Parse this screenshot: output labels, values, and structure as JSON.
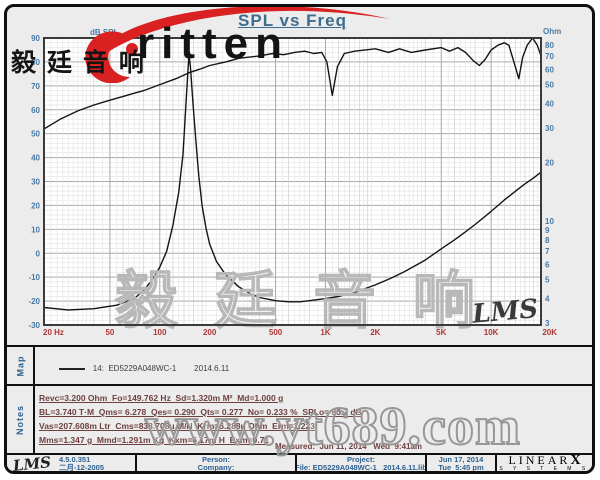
{
  "title": "SPL vs Freq",
  "logo": {
    "brand": "ritten",
    "cn": "毅 廷 音 响"
  },
  "watermarks": {
    "plot_cn": "毅 廷 音 响",
    "site": "www.yt689.com",
    "lms_script": "LMS"
  },
  "map": {
    "label": "Map",
    "legend": "14:  ED5229A048WC-1        2014.6.11"
  },
  "notes": {
    "label": "Notes",
    "lines": [
      "Revc=3.200 Ohm  Fo=149.762 Hz  Sd=1.320m M²  Md=1.000 g",
      "BL=3.740 T·M  Qms= 6.278  Qes= 0.290  Qts= 0.277  No= 0.233 %  SPLo= 85.7 dB",
      "Vas=207.608m Ltr  Cms=838.708u M/N  Krm=6.288u Ohm  Erm=1.223",
      "Mms=1.347 g  Mmd=1.291m Kg  Kxm=6.17m H  Exm=0.71"
    ],
    "measured": "Measured:  Jun 11, 2014   Wed  9:41am"
  },
  "footer": {
    "lms": "LMS",
    "version": "4.5.0.351",
    "date_cn": "二月-12-2005",
    "person": "Person:",
    "company": "Company:",
    "project": "Project:",
    "file": "File: ED5229A048WC-1   2014.6.11.lib",
    "date": "Jun 17, 2014",
    "time": "Tue  5:45 pm",
    "brand": "LINEAR",
    "brand_x": "X",
    "brand_sub": "S Y S T E M S"
  },
  "colors": {
    "title": "#3d6c8e",
    "axis_blue": "#4a7aa4",
    "freq_red": "#b03636",
    "curve": "#141414",
    "grid_major": "#a8a8a8",
    "grid_mid": "#c8c8c8",
    "grid_minor": "#e2e2e2",
    "logo_red": "#d92121",
    "watermark_gray": "#b8b8b8"
  },
  "chart_data": {
    "type": "line",
    "title": "SPL vs Freq",
    "x_axis": {
      "label": "Hz",
      "scale": "log",
      "min": 20,
      "max": 20000,
      "tick_labels": [
        "20 Hz",
        "50",
        "100",
        "200",
        "500",
        "1K",
        "2K",
        "5K",
        "10K",
        "20K"
      ],
      "tick_values": [
        20,
        50,
        100,
        200,
        500,
        1000,
        2000,
        5000,
        10000,
        20000
      ]
    },
    "y_left": {
      "label": "dB SPL",
      "scale": "linear",
      "min": -30,
      "max": 90,
      "ticks": [
        90,
        80,
        70,
        60,
        50,
        40,
        30,
        20,
        10,
        0,
        -10,
        -20,
        -30
      ]
    },
    "y_right": {
      "label": "Ohm",
      "scale": "log",
      "min": 3,
      "max": 80,
      "ticks": [
        80,
        70,
        60,
        50,
        40,
        30,
        20,
        10,
        9,
        8,
        7,
        6,
        5,
        4,
        3
      ]
    },
    "legend_position": "map-strip-below-plot",
    "grid": true,
    "series": [
      {
        "name": "14: ED5229A048WC-1 2014.6.11 SPL",
        "axis": "left",
        "units": "dB",
        "points": [
          [
            20,
            52
          ],
          [
            25,
            56
          ],
          [
            32,
            59.5
          ],
          [
            40,
            62
          ],
          [
            50,
            64
          ],
          [
            63,
            66
          ],
          [
            80,
            68
          ],
          [
            100,
            70.5
          ],
          [
            125,
            73
          ],
          [
            150,
            75.5
          ],
          [
            175,
            77
          ],
          [
            200,
            78.5
          ],
          [
            250,
            80
          ],
          [
            300,
            81.5
          ],
          [
            400,
            82.5
          ],
          [
            480,
            83.5
          ],
          [
            560,
            83
          ],
          [
            650,
            84
          ],
          [
            750,
            84.5
          ],
          [
            850,
            83.5
          ],
          [
            950,
            84
          ],
          [
            1020,
            80
          ],
          [
            1100,
            66
          ],
          [
            1180,
            78
          ],
          [
            1300,
            83.5
          ],
          [
            1500,
            84.5
          ],
          [
            2000,
            85.5
          ],
          [
            2400,
            84
          ],
          [
            2800,
            85.5
          ],
          [
            3300,
            84
          ],
          [
            4000,
            85
          ],
          [
            5000,
            86
          ],
          [
            5600,
            84.5
          ],
          [
            6300,
            86
          ],
          [
            7000,
            84
          ],
          [
            7800,
            80.5
          ],
          [
            8500,
            78.5
          ],
          [
            9200,
            81
          ],
          [
            10000,
            85
          ],
          [
            11000,
            87
          ],
          [
            12000,
            88
          ],
          [
            12800,
            87
          ],
          [
            14000,
            78
          ],
          [
            14700,
            73
          ],
          [
            15500,
            82
          ],
          [
            16500,
            87
          ],
          [
            17800,
            90
          ],
          [
            19000,
            87
          ],
          [
            20000,
            82.5
          ]
        ]
      },
      {
        "name": "Impedance",
        "axis": "right",
        "units": "Ohm",
        "points": [
          [
            20,
            3.6
          ],
          [
            28,
            3.5
          ],
          [
            40,
            3.55
          ],
          [
            55,
            3.7
          ],
          [
            70,
            4.0
          ],
          [
            80,
            4.4
          ],
          [
            90,
            5.0
          ],
          [
            100,
            5.8
          ],
          [
            110,
            7
          ],
          [
            120,
            9.5
          ],
          [
            130,
            14
          ],
          [
            138,
            22
          ],
          [
            144,
            40
          ],
          [
            148,
            60
          ],
          [
            150,
            71
          ],
          [
            153,
            62
          ],
          [
            158,
            42
          ],
          [
            165,
            26
          ],
          [
            172,
            17
          ],
          [
            180,
            12
          ],
          [
            190,
            9.2
          ],
          [
            200,
            7.6
          ],
          [
            220,
            6.2
          ],
          [
            250,
            5.3
          ],
          [
            300,
            4.6
          ],
          [
            350,
            4.25
          ],
          [
            400,
            4.05
          ],
          [
            500,
            3.9
          ],
          [
            600,
            3.85
          ],
          [
            700,
            3.85
          ],
          [
            800,
            3.9
          ],
          [
            1000,
            4.0
          ],
          [
            1200,
            4.1
          ],
          [
            1500,
            4.3
          ],
          [
            2000,
            4.7
          ],
          [
            2500,
            5.1
          ],
          [
            3000,
            5.5
          ],
          [
            4000,
            6.3
          ],
          [
            5000,
            7.2
          ],
          [
            6000,
            8.0
          ],
          [
            7000,
            8.8
          ],
          [
            8000,
            9.6
          ],
          [
            10000,
            11.2
          ],
          [
            12000,
            12.8
          ],
          [
            14000,
            14.2
          ],
          [
            16000,
            15.5
          ],
          [
            18000,
            16.6
          ],
          [
            20000,
            17.8
          ]
        ]
      }
    ],
    "annotations": {
      "fo_hz": 149.762,
      "splo_db": 85.7,
      "revc_ohm": 3.2
    }
  }
}
